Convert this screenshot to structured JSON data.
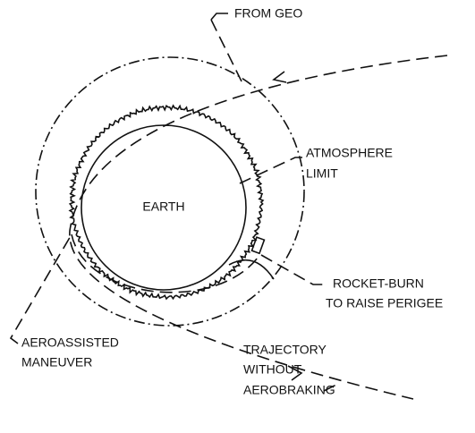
{
  "labels": {
    "from_geo": "FROM GEO",
    "earth": "EARTH",
    "atmosphere_limit": [
      "ATMOSPHERE",
      "LIMIT"
    ],
    "rocket_burn": [
      "ROCKET-BURN",
      "TO RAISE PERIGEE"
    ],
    "aeroassisted_maneuver": [
      "AEROASSISTED",
      "MANEUVER"
    ],
    "trajectory_without_aerobraking": [
      "TRAJECTORY",
      "WITHOUT",
      "AEROBRAKING"
    ]
  }
}
